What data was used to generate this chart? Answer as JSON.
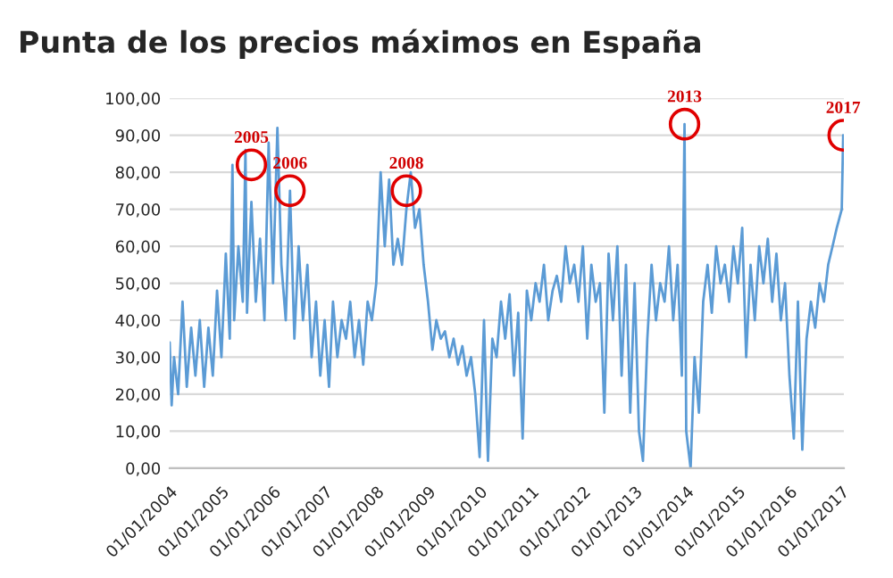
{
  "chart_data": {
    "type": "line",
    "title": "Punta de los precios máximos en España",
    "x": [
      "2004-01-01",
      "2004-01-15",
      "2004-02-01",
      "2004-03-01",
      "2004-04-01",
      "2004-05-01",
      "2004-06-01",
      "2004-07-01",
      "2004-08-01",
      "2004-09-01",
      "2004-10-01",
      "2004-11-01",
      "2004-12-01",
      "2005-01-01",
      "2005-02-01",
      "2005-03-01",
      "2005-03-20",
      "2005-04-01",
      "2005-05-01",
      "2005-06-01",
      "2005-06-20",
      "2005-07-01",
      "2005-08-01",
      "2005-09-01",
      "2005-10-01",
      "2005-11-01",
      "2005-12-01",
      "2006-01-01",
      "2006-02-01",
      "2006-03-01",
      "2006-04-01",
      "2006-05-01",
      "2006-06-01",
      "2006-07-01",
      "2006-08-01",
      "2006-09-01",
      "2006-10-01",
      "2006-11-01",
      "2006-12-01",
      "2007-01-01",
      "2007-02-01",
      "2007-03-01",
      "2007-04-01",
      "2007-05-01",
      "2007-06-01",
      "2007-07-01",
      "2007-08-01",
      "2007-09-01",
      "2007-10-01",
      "2007-11-01",
      "2007-12-01",
      "2008-01-01",
      "2008-02-01",
      "2008-03-01",
      "2008-04-01",
      "2008-05-01",
      "2008-06-01",
      "2008-07-01",
      "2008-08-01",
      "2008-09-01",
      "2008-10-01",
      "2008-11-01",
      "2008-12-01",
      "2009-01-01",
      "2009-02-01",
      "2009-03-01",
      "2009-04-01",
      "2009-05-01",
      "2009-06-01",
      "2009-07-01",
      "2009-08-01",
      "2009-09-01",
      "2009-10-01",
      "2009-11-01",
      "2009-12-01",
      "2010-01-01",
      "2010-02-01",
      "2010-03-01",
      "2010-04-01",
      "2010-05-01",
      "2010-06-01",
      "2010-07-01",
      "2010-08-01",
      "2010-09-01",
      "2010-10-01",
      "2010-11-01",
      "2010-12-01",
      "2011-01-01",
      "2011-02-01",
      "2011-03-01",
      "2011-04-01",
      "2011-05-01",
      "2011-06-01",
      "2011-07-01",
      "2011-08-01",
      "2011-09-01",
      "2011-10-01",
      "2011-11-01",
      "2011-12-01",
      "2012-01-01",
      "2012-02-01",
      "2012-03-01",
      "2012-04-01",
      "2012-05-01",
      "2012-06-01",
      "2012-07-01",
      "2012-08-01",
      "2012-09-01",
      "2012-10-01",
      "2012-11-01",
      "2012-12-01",
      "2013-01-01",
      "2013-02-01",
      "2013-03-01",
      "2013-04-01",
      "2013-05-01",
      "2013-06-01",
      "2013-07-01",
      "2013-08-01",
      "2013-09-01",
      "2013-10-01",
      "2013-11-01",
      "2013-12-01",
      "2013-12-20",
      "2014-01-01",
      "2014-02-01",
      "2014-03-01",
      "2014-04-01",
      "2014-05-01",
      "2014-06-01",
      "2014-07-01",
      "2014-08-01",
      "2014-09-01",
      "2014-10-01",
      "2014-11-01",
      "2014-12-01",
      "2015-01-01",
      "2015-02-01",
      "2015-03-01",
      "2015-04-01",
      "2015-05-01",
      "2015-06-01",
      "2015-07-01",
      "2015-08-01",
      "2015-09-01",
      "2015-10-01",
      "2015-11-01",
      "2015-12-01",
      "2016-01-01",
      "2016-02-01",
      "2016-03-01",
      "2016-04-01",
      "2016-05-01",
      "2016-06-01",
      "2016-07-01",
      "2016-08-01",
      "2016-09-01",
      "2016-10-01",
      "2016-11-01",
      "2016-12-01",
      "2017-01-05",
      "2017-01-15"
    ],
    "series": [
      {
        "color": "#5b9bd5",
        "values": [
          34,
          17,
          30,
          20,
          45,
          22,
          38,
          25,
          40,
          22,
          38,
          25,
          48,
          30,
          58,
          35,
          82,
          40,
          60,
          45,
          86,
          42,
          72,
          45,
          62,
          40,
          88,
          50,
          92,
          55,
          40,
          75,
          35,
          60,
          40,
          55,
          30,
          45,
          25,
          40,
          22,
          45,
          30,
          40,
          35,
          45,
          30,
          40,
          28,
          45,
          40,
          50,
          80,
          60,
          78,
          55,
          62,
          55,
          70,
          80,
          65,
          70,
          55,
          45,
          32,
          40,
          35,
          37,
          30,
          35,
          28,
          33,
          25,
          30,
          20,
          3,
          40,
          2,
          35,
          30,
          45,
          35,
          47,
          25,
          42,
          8,
          48,
          40,
          50,
          45,
          55,
          40,
          48,
          52,
          45,
          60,
          50,
          55,
          45,
          60,
          35,
          55,
          45,
          50,
          15,
          58,
          40,
          60,
          25,
          55,
          15,
          50,
          10,
          2,
          35,
          55,
          40,
          50,
          45,
          60,
          40,
          55,
          25,
          93,
          10,
          0,
          30,
          15,
          45,
          55,
          42,
          60,
          50,
          55,
          45,
          60,
          50,
          65,
          30,
          55,
          40,
          60,
          50,
          62,
          45,
          58,
          40,
          50,
          25,
          8,
          45,
          5,
          35,
          45,
          38,
          50,
          45,
          55,
          60,
          65,
          70,
          90
        ]
      }
    ],
    "xlim": [
      "2004-01-01",
      "2017-01-20"
    ],
    "xticks": [
      {
        "value": "2004-01-01",
        "label": "01/01/2004"
      },
      {
        "value": "2005-01-01",
        "label": "01/01/2005"
      },
      {
        "value": "2006-01-01",
        "label": "01/01/2006"
      },
      {
        "value": "2007-01-01",
        "label": "01/01/2007"
      },
      {
        "value": "2008-01-01",
        "label": "01/01/2008"
      },
      {
        "value": "2009-01-01",
        "label": "01/01/2009"
      },
      {
        "value": "2010-01-01",
        "label": "01/01/2010"
      },
      {
        "value": "2011-01-01",
        "label": "01/01/2011"
      },
      {
        "value": "2012-01-01",
        "label": "01/01/2012"
      },
      {
        "value": "2013-01-01",
        "label": "01/01/2013"
      },
      {
        "value": "2014-01-01",
        "label": "01/01/2014"
      },
      {
        "value": "2015-01-01",
        "label": "01/01/2015"
      },
      {
        "value": "2016-01-01",
        "label": "01/01/2016"
      },
      {
        "value": "2017-01-01",
        "label": "01/01/2017"
      }
    ],
    "ylim": [
      0,
      100
    ],
    "yticks": [
      {
        "value": 0,
        "label": "0,00"
      },
      {
        "value": 10,
        "label": "10,00"
      },
      {
        "value": 20,
        "label": "20,00"
      },
      {
        "value": 30,
        "label": "30,00"
      },
      {
        "value": 40,
        "label": "40,00"
      },
      {
        "value": 50,
        "label": "50,00"
      },
      {
        "value": 60,
        "label": "60,00"
      },
      {
        "value": 70,
        "label": "70,00"
      },
      {
        "value": 80,
        "label": "80,00"
      },
      {
        "value": 90,
        "label": "90,00"
      },
      {
        "value": 100,
        "label": "100,00"
      }
    ],
    "grid": "y",
    "legend": false,
    "marker": "none",
    "line_style": "solid",
    "annotations": [
      {
        "text": "2005",
        "x": "2005-08-01",
        "y": 82
      },
      {
        "text": "2006",
        "x": "2006-05-01",
        "y": 75
      },
      {
        "text": "2008",
        "x": "2008-08-01",
        "y": 75
      },
      {
        "text": "2013",
        "x": "2013-12-20",
        "y": 93
      },
      {
        "text": "2017",
        "x": "2017-01-15",
        "y": 90
      }
    ]
  }
}
